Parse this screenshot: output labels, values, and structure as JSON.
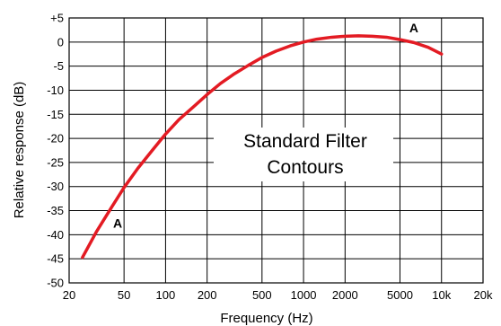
{
  "chart_data": {
    "type": "line",
    "title": "",
    "annotation": [
      "Standard Filter",
      "Contours"
    ],
    "xlabel": "Frequency (Hz)",
    "ylabel": "Relative response (dB)",
    "x_scale": "log",
    "xlim": [
      20,
      20000
    ],
    "ylim": [
      -50,
      5
    ],
    "x_ticks": [
      20,
      50,
      100,
      200,
      500,
      1000,
      2000,
      5000,
      10000,
      20000
    ],
    "x_tick_labels": [
      "20",
      "50",
      "100",
      "200",
      "500",
      "1000",
      "2000",
      "5000",
      "10k",
      "20k"
    ],
    "y_ticks": [
      5,
      0,
      -5,
      -10,
      -15,
      -20,
      -25,
      -30,
      -35,
      -40,
      -45,
      -50
    ],
    "y_tick_labels": [
      "+5",
      "0",
      "-5",
      "-10",
      "-15",
      "-20",
      "-25",
      "-30",
      "-35",
      "-40",
      "-45",
      "-50"
    ],
    "grid": true,
    "series": [
      {
        "name": "A",
        "color": "#e31b23",
        "x": [
          25,
          31.5,
          40,
          50,
          63,
          80,
          100,
          125,
          160,
          200,
          250,
          315,
          400,
          500,
          630,
          800,
          1000,
          1250,
          1600,
          2000,
          2500,
          3150,
          4000,
          5000,
          6300,
          8000,
          10000
        ],
        "y": [
          -44.7,
          -39.4,
          -34.6,
          -30.2,
          -26.2,
          -22.5,
          -19.1,
          -16.1,
          -13.4,
          -10.9,
          -8.6,
          -6.6,
          -4.8,
          -3.2,
          -1.9,
          -0.8,
          0,
          0.6,
          1.0,
          1.2,
          1.3,
          1.2,
          1.0,
          0.5,
          -0.1,
          -1.1,
          -2.5
        ]
      }
    ],
    "series_labels": [
      {
        "text": "A",
        "x": 45,
        "y": -38.5
      },
      {
        "text": "A",
        "x": 6300,
        "y": 2
      }
    ]
  }
}
